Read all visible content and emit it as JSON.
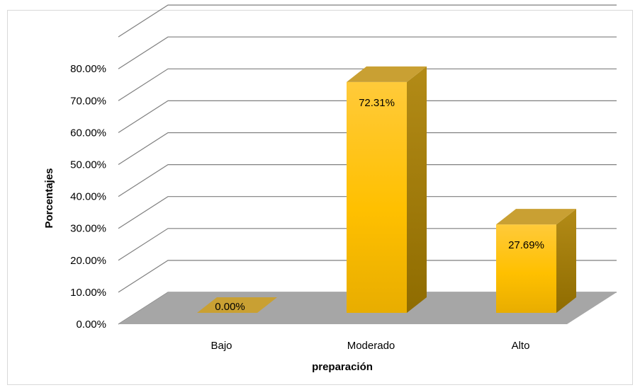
{
  "chart_data": {
    "type": "bar",
    "categories": [
      "Bajo",
      "Moderado",
      "Alto"
    ],
    "values": [
      0.0,
      72.31,
      27.69
    ],
    "data_labels": [
      "0.00%",
      "72.31%",
      "27.69%"
    ],
    "xlabel": "preparación",
    "ylabel": "Porcentajes",
    "ylim": [
      0,
      80
    ],
    "y_ticks": [
      "0.00%",
      "10.00%",
      "20.00%",
      "30.00%",
      "40.00%",
      "50.00%",
      "60.00%",
      "70.00%",
      "80.00%"
    ],
    "grid": true,
    "style": "3d-column",
    "colors": {
      "bar_front": "#ffc000",
      "bar_top": "#c9a033",
      "bar_side": "#a07a00",
      "floor": "#a6a6a6",
      "grid": "#7f7f7f"
    }
  }
}
